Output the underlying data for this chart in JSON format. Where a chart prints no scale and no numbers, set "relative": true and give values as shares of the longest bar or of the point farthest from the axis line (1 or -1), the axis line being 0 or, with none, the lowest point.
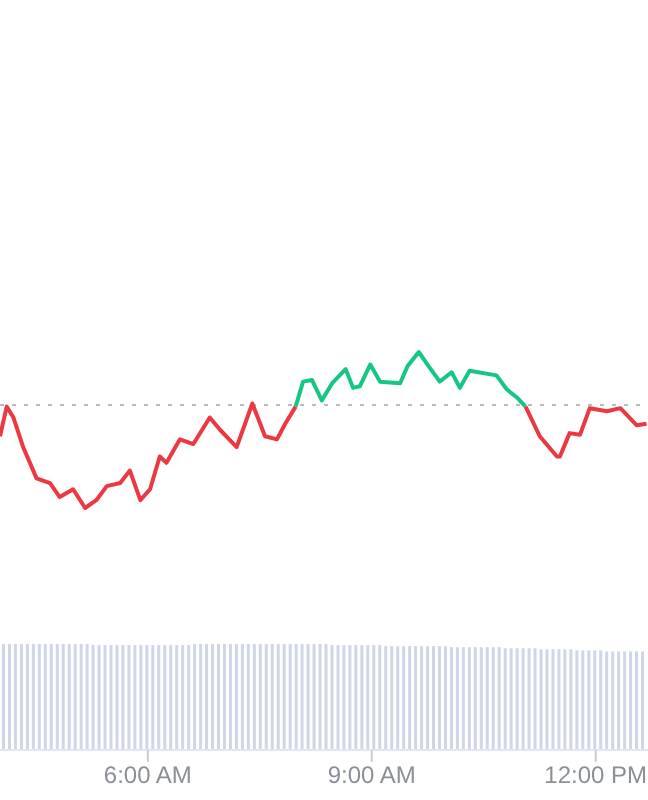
{
  "chart_data": [
    {
      "type": "line",
      "relative": true,
      "tick_labels": false,
      "xlim": [
        4.02,
        12.7
      ],
      "ref_lines": [
        {
          "axis": "y",
          "value": 0.66,
          "line_style": "dotted",
          "color": "#bbbbbb"
        }
      ],
      "series": [
        {
          "type": "line",
          "color": "#ea3943",
          "x": [
            4.02,
            4.11,
            4.2,
            4.33,
            4.51,
            4.69,
            4.82,
            5.0,
            5.16,
            5.31,
            5.45,
            5.63,
            5.76,
            5.9,
            6.03,
            6.16,
            6.25,
            6.43,
            6.61,
            6.83,
            6.97,
            7.19,
            7.4,
            7.57,
            7.73,
            7.84,
            7.98
          ],
          "values": [
            0.46,
            0.65,
            0.58,
            0.39,
            0.19,
            0.16,
            0.07,
            0.12,
            0,
            0.05,
            0.14,
            0.16,
            0.24,
            0.05,
            0.12,
            0.33,
            0.29,
            0.44,
            0.41,
            0.58,
            0.5,
            0.39,
            0.67,
            0.46,
            0.44,
            0.54,
            0.65
          ]
        },
        {
          "type": "line",
          "color": "#16c784",
          "x": [
            7.98,
            8.08,
            8.2,
            8.33,
            8.47,
            8.65,
            8.75,
            8.84,
            8.98,
            9.11,
            9.38,
            9.48,
            9.63,
            9.73,
            9.91,
            10.07,
            10.18,
            10.31,
            10.67,
            10.81,
            10.94,
            11.06
          ],
          "values": [
            0.65,
            0.81,
            0.82,
            0.69,
            0.8,
            0.89,
            0.77,
            0.78,
            0.92,
            0.81,
            0.8,
            0.91,
            1,
            0.93,
            0.81,
            0.87,
            0.77,
            0.88,
            0.85,
            0.76,
            0.71,
            0.65
          ]
        },
        {
          "type": "line",
          "color": "#ea3943",
          "x": [
            11.06,
            11.25,
            11.48,
            11.52,
            11.65,
            11.79,
            11.92,
            12.15,
            12.33,
            12.55,
            12.68
          ],
          "values": [
            0.65,
            0.46,
            0.33,
            0.33,
            0.48,
            0.47,
            0.64,
            0.62,
            0.64,
            0.53,
            0.54
          ]
        }
      ]
    },
    {
      "type": "bar",
      "relative": true,
      "color": "#cfd6e8",
      "xlim": [
        4.02,
        12.7
      ],
      "xticks": [
        {
          "value": 6,
          "label": "6:00 AM"
        },
        {
          "value": 9,
          "label": "9:00 AM"
        },
        {
          "value": 12,
          "label": "12:00 PM"
        }
      ],
      "x": [
        4.06,
        4.14,
        4.22,
        4.3,
        4.38,
        4.46,
        4.54,
        4.62,
        4.7,
        4.78,
        4.86,
        4.94,
        5.02,
        5.1,
        5.18,
        5.26,
        5.34,
        5.42,
        5.5,
        5.58,
        5.66,
        5.74,
        5.82,
        5.9,
        5.98,
        6.06,
        6.14,
        6.22,
        6.3,
        6.38,
        6.46,
        6.54,
        6.62,
        6.7,
        6.78,
        6.86,
        6.94,
        7.02,
        7.1,
        7.18,
        7.26,
        7.34,
        7.42,
        7.5,
        7.58,
        7.66,
        7.74,
        7.82,
        7.9,
        7.98,
        8.06,
        8.14,
        8.22,
        8.3,
        8.38,
        8.46,
        8.54,
        8.62,
        8.7,
        8.78,
        8.86,
        8.94,
        9.02,
        9.1,
        9.18,
        9.26,
        9.34,
        9.42,
        9.5,
        9.58,
        9.66,
        9.74,
        9.82,
        9.9,
        9.98,
        10.06,
        10.14,
        10.22,
        10.3,
        10.38,
        10.46,
        10.54,
        10.62,
        10.7,
        10.78,
        10.86,
        10.94,
        11.02,
        11.1,
        11.18,
        11.26,
        11.34,
        11.42,
        11.5,
        11.58,
        11.66,
        11.74,
        11.82,
        11.9,
        11.98,
        12.06,
        12.14,
        12.22,
        12.3,
        12.38,
        12.46,
        12.54,
        12.62
      ],
      "values": [
        1,
        1,
        1,
        1,
        1,
        1,
        1,
        1,
        1,
        1,
        1,
        1,
        1,
        1,
        1,
        0.99,
        0.99,
        0.99,
        0.99,
        0.99,
        0.99,
        0.99,
        0.99,
        0.99,
        0.99,
        0.99,
        0.99,
        0.99,
        0.99,
        0.99,
        0.99,
        0.99,
        1,
        1,
        1,
        1,
        1,
        1,
        1,
        1,
        1,
        1,
        1,
        1,
        1,
        1,
        1,
        1,
        1,
        1,
        1,
        1,
        1,
        1,
        1,
        0.99,
        0.99,
        0.99,
        0.99,
        0.99,
        0.99,
        0.99,
        0.99,
        0.99,
        0.98,
        0.98,
        0.98,
        0.98,
        0.98,
        0.98,
        0.98,
        0.98,
        0.98,
        0.98,
        0.98,
        0.97,
        0.97,
        0.97,
        0.97,
        0.97,
        0.97,
        0.97,
        0.97,
        0.97,
        0.96,
        0.96,
        0.96,
        0.96,
        0.96,
        0.96,
        0.95,
        0.95,
        0.95,
        0.95,
        0.95,
        0.95,
        0.94,
        0.94,
        0.94,
        0.94,
        0.94,
        0.93,
        0.93,
        0.93,
        0.93,
        0.93,
        0.93,
        0.93
      ]
    }
  ]
}
